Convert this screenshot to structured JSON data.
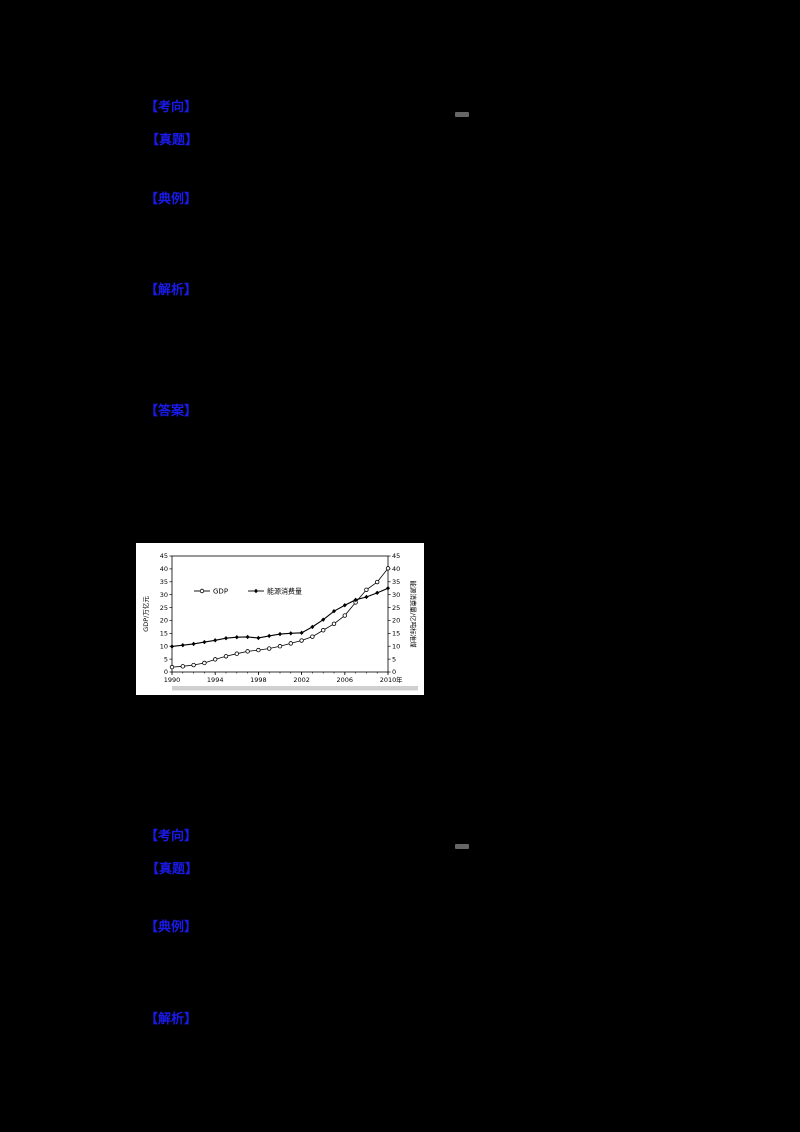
{
  "colors": {
    "page_background": "#000000",
    "marker_blue": "#1a1ae6",
    "chart_background": "#ffffff",
    "series_color": "#000000"
  },
  "sections": [
    {
      "name": "section-1",
      "markers": [
        "【考向】",
        "【真题】",
        "【典例】",
        "【解析】",
        "【答案】"
      ]
    },
    {
      "name": "section-2",
      "markers": [
        "【考向】",
        "【真题】",
        "【典例】",
        "【解析】"
      ]
    }
  ],
  "blanks": {
    "dash_1": "—",
    "dash_2": "—"
  },
  "chart_data": {
    "type": "line",
    "title": "",
    "x": [
      1990,
      1991,
      1992,
      1993,
      1994,
      1995,
      1996,
      1997,
      1998,
      1999,
      2000,
      2001,
      2002,
      2003,
      2004,
      2005,
      2006,
      2007,
      2008,
      2009,
      2010
    ],
    "series": [
      {
        "name": "GDP",
        "axis": "left",
        "marker": "open-circle",
        "values": [
          1.9,
          2.2,
          2.7,
          3.5,
          4.9,
          6.1,
          7.1,
          8.0,
          8.5,
          9.1,
          10.0,
          11.1,
          12.2,
          13.7,
          16.2,
          18.7,
          21.9,
          27.0,
          31.9,
          34.9,
          40.2
        ]
      },
      {
        "name": "能源消费量",
        "axis": "right",
        "marker": "filled-diamond",
        "values": [
          9.9,
          10.4,
          10.9,
          11.6,
          12.3,
          13.1,
          13.5,
          13.6,
          13.2,
          14.0,
          14.7,
          15.0,
          15.2,
          17.5,
          20.3,
          23.6,
          25.9,
          28.0,
          29.1,
          30.7,
          32.5
        ]
      }
    ],
    "ylabel_left": "GDP/万亿元",
    "ylabel_right": "能源消费量/亿吨标准煤",
    "x_unit": "年",
    "xlim": [
      1990,
      2010
    ],
    "ylim": [
      0,
      45
    ],
    "yticks": [
      0,
      5,
      10,
      15,
      20,
      25,
      30,
      35,
      40,
      45
    ],
    "xticks": [
      1990,
      1994,
      1998,
      2002,
      2006,
      2010
    ],
    "legend_position": "top-left-inside",
    "grid": false
  }
}
